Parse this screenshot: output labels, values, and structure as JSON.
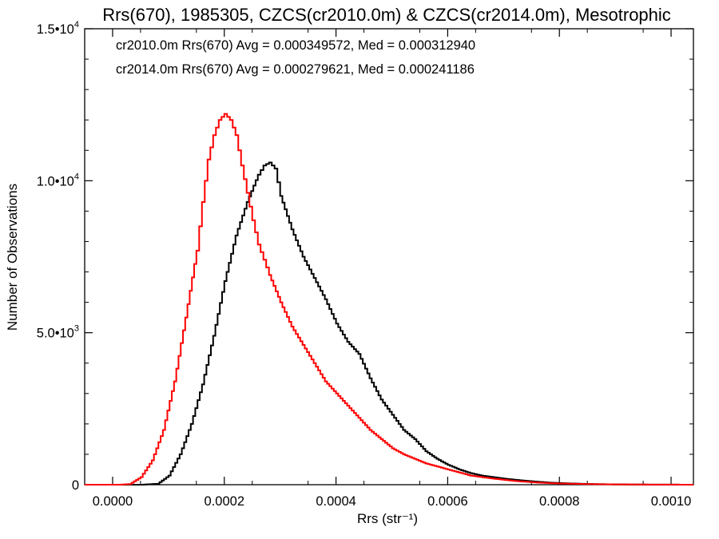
{
  "chart_data": {
    "type": "line",
    "title": "Rrs(670), 1985305, CZCS(cr2010.0m) & CZCS(cr2014.0m), Mesotrophic",
    "xlabel": "Rrs (str⁻¹)",
    "ylabel": "Number of Observations",
    "xlim": [
      -5e-05,
      0.00104
    ],
    "ylim": [
      0,
      15000
    ],
    "grid": false,
    "x_ticks": [
      {
        "value": 0.0,
        "label": "0.0000"
      },
      {
        "value": 0.0002,
        "label": "0.0002"
      },
      {
        "value": 0.0004,
        "label": "0.0004"
      },
      {
        "value": 0.0006,
        "label": "0.0006"
      },
      {
        "value": 0.0008,
        "label": "0.0008"
      },
      {
        "value": 0.001,
        "label": "0.0010"
      }
    ],
    "y_ticks": [
      {
        "value": 0,
        "label": "0",
        "exp": ""
      },
      {
        "value": 5000,
        "label": "5.0•10",
        "exp": "3"
      },
      {
        "value": 10000,
        "label": "1.0•10",
        "exp": "4"
      },
      {
        "value": 15000,
        "label": "1.5•10",
        "exp": "4"
      }
    ],
    "annotations": [
      {
        "text": "cr2010.0m Rrs(670) Avg = 0.000349572, Med = 0.000312940",
        "color": "#000000"
      },
      {
        "text": "cr2014.0m Rrs(670) Avg = 0.000279621, Med = 0.000241186",
        "color": "#ff0000"
      }
    ],
    "series": [
      {
        "color": "#000000",
        "x": [
          5e-05,
          8e-05,
          0.0001,
          0.00012,
          0.00014,
          0.00016,
          0.00018,
          0.0002,
          0.00022,
          0.00024,
          0.00026,
          0.00027,
          0.00028,
          0.00029,
          0.0003,
          0.00032,
          0.00034,
          0.00036,
          0.00038,
          0.0004,
          0.00042,
          0.00044,
          0.00046,
          0.00048,
          0.0005,
          0.00052,
          0.00054,
          0.00056,
          0.00058,
          0.0006,
          0.00062,
          0.00064,
          0.00066,
          0.00068,
          0.0007,
          0.00072,
          0.00075,
          0.00078,
          0.00082,
          0.00086,
          0.0009,
          0.00095,
          0.001,
          0.00104
        ],
        "y": [
          0,
          30,
          300,
          1000,
          2000,
          3300,
          4900,
          6700,
          8200,
          9300,
          10200,
          10500,
          10600,
          10400,
          9500,
          8400,
          7500,
          6800,
          6100,
          5300,
          4700,
          4300,
          3500,
          2800,
          2300,
          1800,
          1500,
          1100,
          850,
          650,
          500,
          380,
          300,
          250,
          200,
          160,
          110,
          70,
          40,
          20,
          10,
          5,
          2,
          1
        ]
      },
      {
        "color": "#ff0000",
        "x": [
          1e-05,
          3e-05,
          5e-05,
          7e-05,
          9e-05,
          0.00011,
          0.00013,
          0.00015,
          0.00016,
          0.00017,
          0.00018,
          0.00019,
          0.0002,
          0.00021,
          0.00022,
          0.00023,
          0.00024,
          0.00025,
          0.00026,
          0.00027,
          0.00028,
          0.0003,
          0.00032,
          0.00034,
          0.00036,
          0.00038,
          0.0004,
          0.00042,
          0.00044,
          0.00046,
          0.00048,
          0.0005,
          0.00052,
          0.00054,
          0.00056,
          0.00058,
          0.0006,
          0.00062,
          0.00064,
          0.00068,
          0.00072,
          0.00076,
          0.0008,
          0.00085,
          0.0009,
          0.00095,
          0.001,
          0.00104
        ],
        "y": [
          0,
          20,
          250,
          800,
          1800,
          3400,
          5500,
          7700,
          9300,
          10700,
          11500,
          12000,
          12200,
          12000,
          11500,
          10500,
          9600,
          8700,
          7900,
          7400,
          6900,
          6000,
          5200,
          4600,
          4000,
          3400,
          3000,
          2600,
          2200,
          1800,
          1500,
          1200,
          1000,
          850,
          700,
          600,
          500,
          400,
          300,
          200,
          120,
          70,
          40,
          20,
          10,
          5,
          2,
          1
        ]
      }
    ]
  }
}
